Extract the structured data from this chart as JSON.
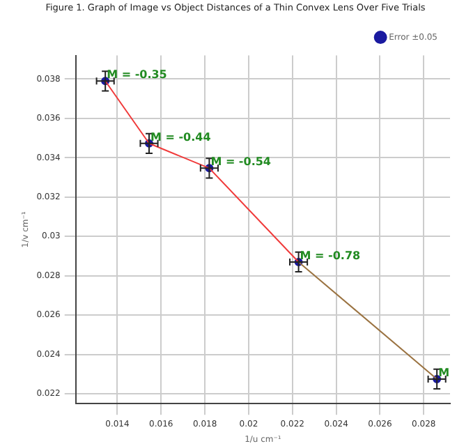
{
  "chart_data": {
    "type": "scatter",
    "title": "Figure 1. Graph of Image vs Object Distances of a Thin Convex Lens Over Five Trials",
    "xlabel": "1/u cm⁻¹",
    "ylabel": "1/v cm⁻¹",
    "series": [
      {
        "type": "line",
        "color": "#f03a3a",
        "x": [
          0.01345,
          0.01545,
          0.0182,
          0.02228
        ],
        "values": [
          0.0379,
          0.03473,
          0.03347,
          0.0287
        ]
      },
      {
        "type": "line",
        "color": "#9a7240",
        "x": [
          0.02228,
          0.0286
        ],
        "values": [
          0.0287,
          0.02275
        ]
      },
      {
        "name": "Error ±0.05",
        "color": "#1a1aa0",
        "marker": "circle",
        "x": [
          0.01345,
          0.01545,
          0.0182,
          0.02228,
          0.0286
        ],
        "values": [
          0.0379,
          0.03473,
          0.03347,
          0.0287,
          0.02275
        ],
        "errors": [
          0.0005,
          0.0005,
          0.0005,
          0.0005,
          0.0005
        ],
        "xerrors": [
          0.0004,
          0.0004,
          0.0004,
          0.0004,
          0.0004
        ]
      }
    ],
    "xlim": [
      0.0121,
      0.0292
    ],
    "ylim": [
      0.0215,
      0.0392
    ],
    "xticks": [
      0.014,
      0.016,
      0.018,
      0.02,
      0.022,
      0.024,
      0.026,
      0.028
    ],
    "yticks": [
      0.022,
      0.024,
      0.026,
      0.028,
      0.03,
      0.032,
      0.034,
      0.036,
      0.038
    ],
    "grid": true,
    "legend": "top right",
    "annotations": [
      {
        "text": "M = -0.35",
        "x": 0.01345,
        "y": 0.0379
      },
      {
        "text": "M = -0.44",
        "x": 0.01545,
        "y": 0.03473
      },
      {
        "text": "M = -0.54",
        "x": 0.0182,
        "y": 0.03347
      },
      {
        "text": "M = -0.78",
        "x": 0.02228,
        "y": 0.0287
      },
      {
        "text": "M",
        "x": 0.0286,
        "y": 0.02275
      }
    ]
  }
}
